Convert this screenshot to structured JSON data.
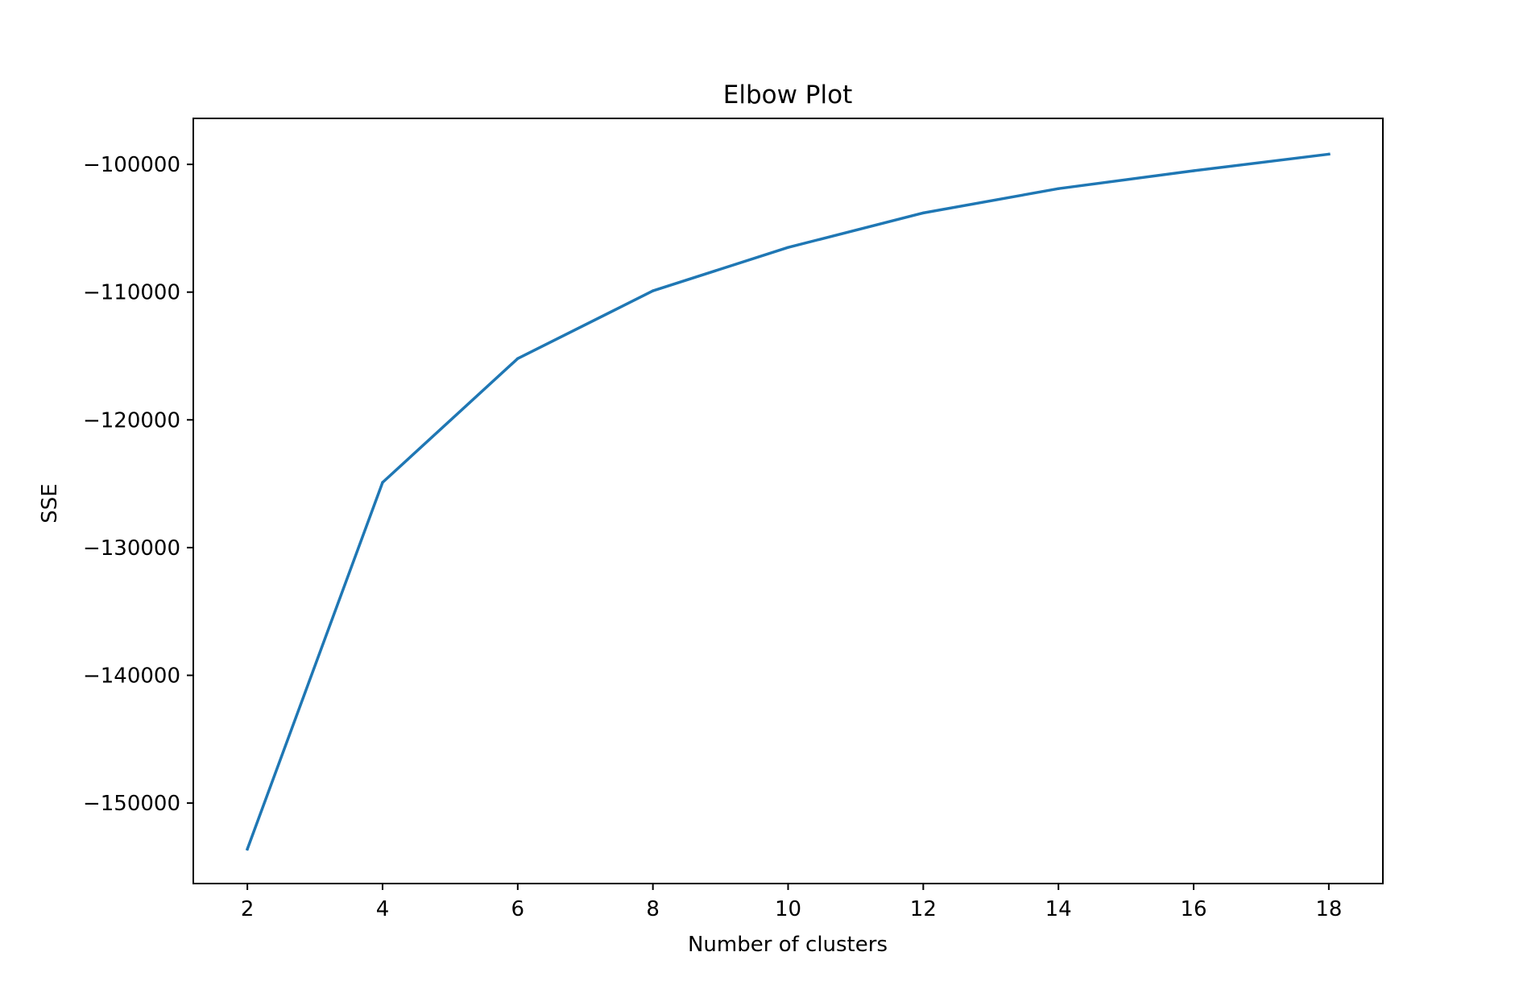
{
  "chart_data": {
    "type": "line",
    "title": "Elbow Plot",
    "xlabel": "Number of clusters",
    "ylabel": "SSE",
    "xlim": [
      1.2,
      18.8
    ],
    "ylim": [
      -156300,
      -96400
    ],
    "x_ticks": [
      2,
      4,
      6,
      8,
      10,
      12,
      14,
      16,
      18
    ],
    "x_tick_labels": [
      "2",
      "4",
      "6",
      "8",
      "10",
      "12",
      "14",
      "16",
      "18"
    ],
    "y_ticks": [
      -150000,
      -140000,
      -130000,
      -120000,
      -110000,
      -100000
    ],
    "y_tick_labels": [
      "−150000",
      "−140000",
      "−130000",
      "−120000",
      "−110000",
      "−100000"
    ],
    "grid": false,
    "series": [
      {
        "color": "#1f77b4",
        "x": [
          2,
          4,
          6,
          8,
          10,
          12,
          14,
          16,
          18
        ],
        "y": [
          -153600,
          -124900,
          -115200,
          -109900,
          -106500,
          -103800,
          -101900,
          -100500,
          -99200
        ]
      }
    ]
  }
}
